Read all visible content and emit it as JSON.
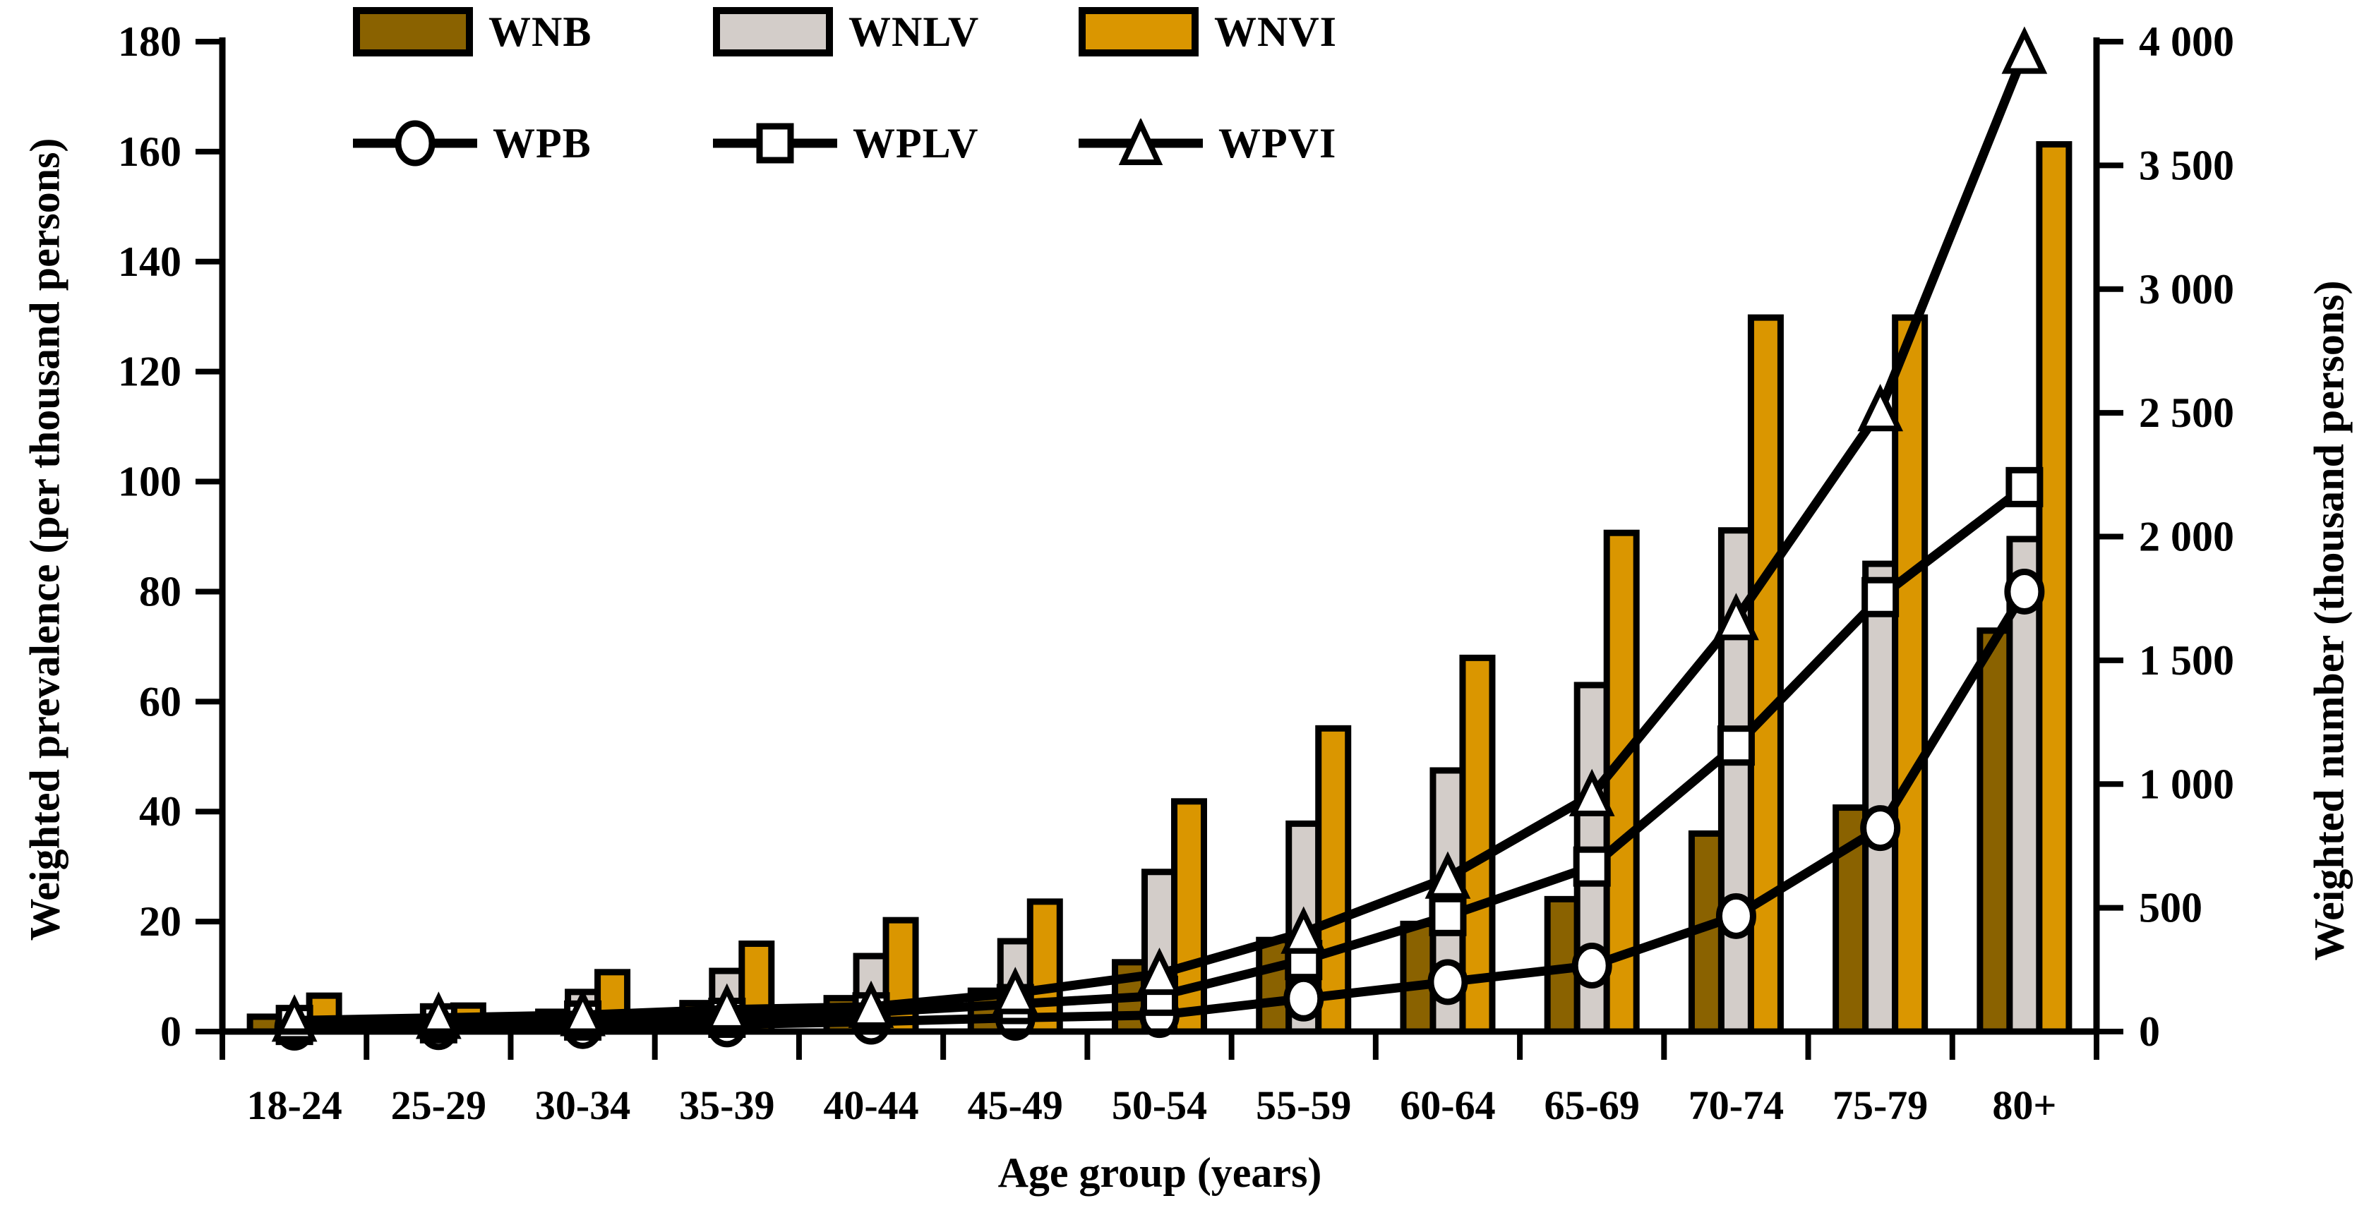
{
  "chart_data": {
    "type": "bar+line",
    "title": "",
    "xlabel": "Age group (years)",
    "ylabel_left": "Weighted prevalence (per thousand persons)",
    "ylabel_right": "Weighted number (thousand persons)",
    "categories": [
      "18-24",
      "25-29",
      "30-34",
      "35-39",
      "40-44",
      "45-49",
      "50-54",
      "55-59",
      "60-64",
      "65-69",
      "70-74",
      "75-79",
      "80+"
    ],
    "left_axis": {
      "min": 0,
      "max": 180,
      "step": 20,
      "tick_labels": [
        "0",
        "20",
        "40",
        "60",
        "80",
        "100",
        "120",
        "140",
        "160",
        "180"
      ]
    },
    "right_axis": {
      "min": 0,
      "max": 4000,
      "step": 500,
      "tick_labels": [
        "0",
        "500",
        "1 000",
        "1 500",
        "2 000",
        "2 500",
        "3 000",
        "3 500",
        "4 000"
      ]
    },
    "grid": false,
    "legend_position": "top-left, two rows",
    "series": [
      {
        "name": "WNB",
        "type": "bar",
        "axis": "right",
        "color": "#8a6200",
        "values": [
          60,
          35,
          80,
          115,
          135,
          165,
          280,
          370,
          435,
          535,
          800,
          905,
          1620
        ]
      },
      {
        "name": "WNLV",
        "type": "bar",
        "axis": "right",
        "color": "#d3cdc9",
        "values": [
          85,
          70,
          160,
          245,
          305,
          365,
          645,
          840,
          1055,
          1400,
          2025,
          1890,
          1990
        ]
      },
      {
        "name": "WNVI",
        "type": "bar",
        "axis": "right",
        "color": "#da9600",
        "values": [
          145,
          105,
          240,
          355,
          450,
          525,
          930,
          1225,
          1510,
          2015,
          2885,
          2885,
          3585
        ]
      },
      {
        "name": "WPB",
        "type": "line",
        "axis": "left",
        "marker": "circle",
        "values": [
          0.7,
          0.8,
          1.0,
          1.3,
          1.8,
          2.5,
          3,
          6,
          9,
          12,
          21,
          37,
          80
        ]
      },
      {
        "name": "WPLV",
        "type": "line",
        "axis": "left",
        "marker": "square",
        "values": [
          1.2,
          1.5,
          2,
          2.5,
          3.5,
          5,
          6.5,
          13,
          21,
          30,
          52,
          79,
          99
        ]
      },
      {
        "name": "WPVI",
        "type": "line",
        "axis": "left",
        "marker": "triangle",
        "values": [
          2,
          2.5,
          3,
          4,
          4.5,
          7,
          10.5,
          18,
          28,
          43,
          75,
          113,
          178
        ]
      }
    ]
  },
  "legend": {
    "wnb": "WNB",
    "wnlv": "WNLV",
    "wnvi": "WNVI",
    "wpb": "WPB",
    "wplv": "WPLV",
    "wpvi": "WPVI"
  },
  "titles": {
    "left_axis": "Weighted prevalence (per thousand persons)",
    "right_axis": "Weighted number (thousand persons)",
    "x_axis": "Age group (years)"
  },
  "colors": {
    "wnb_fill": "#8a6200",
    "wnlv_fill": "#d3cdc9",
    "wnvi_fill": "#da9600",
    "line_and_border": "#000000",
    "marker_fill": "#ffffff",
    "background": "#ffffff"
  }
}
